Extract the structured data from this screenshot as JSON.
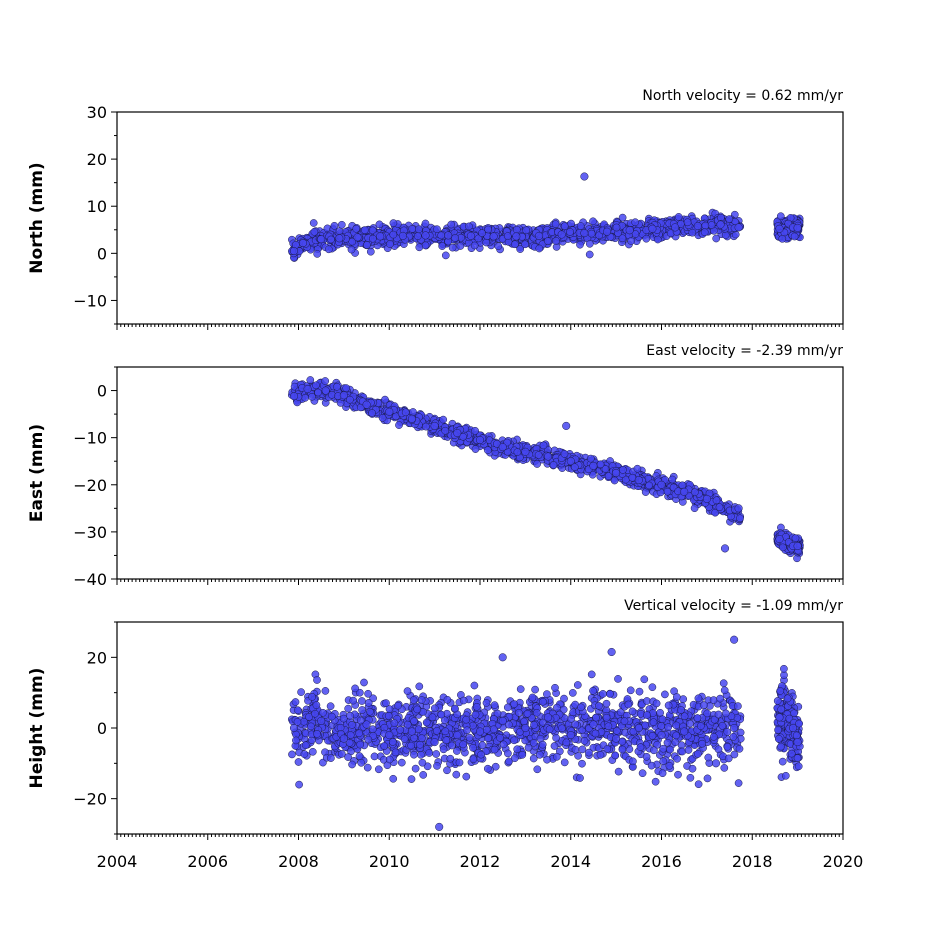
{
  "chart_data": [
    {
      "type": "scatter",
      "panel": "north",
      "ylabel": "North (mm)",
      "annotation": "North velocity = 0.62 mm/yr",
      "xlim": [
        2004,
        2020
      ],
      "ylim": [
        -15,
        30
      ],
      "yticks": [
        -10,
        0,
        10,
        20,
        30
      ],
      "ytick_labels": [
        "−10",
        "0",
        "10",
        "20",
        "30"
      ],
      "velocity_mm_per_yr": 0.62,
      "points": [
        [
          2007.9,
          0.5
        ],
        [
          2008.1,
          2.2
        ],
        [
          2008.5,
          3.0
        ],
        [
          2008.9,
          3.2
        ],
        [
          2009.3,
          3.4
        ],
        [
          2009.8,
          3.6
        ],
        [
          2010.3,
          3.7
        ],
        [
          2010.8,
          3.8
        ],
        [
          2011.3,
          3.8
        ],
        [
          2011.8,
          3.7
        ],
        [
          2012.3,
          3.6
        ],
        [
          2012.8,
          3.6
        ],
        [
          2013.3,
          3.7
        ],
        [
          2013.8,
          4.0
        ],
        [
          2014.3,
          16.3
        ],
        [
          2014.3,
          4.3
        ],
        [
          2014.8,
          4.6
        ],
        [
          2015.3,
          4.9
        ],
        [
          2015.8,
          5.2
        ],
        [
          2016.3,
          5.5
        ],
        [
          2016.8,
          5.8
        ],
        [
          2017.3,
          6.1
        ],
        [
          2017.7,
          5.5
        ],
        [
          2018.6,
          5.2
        ],
        [
          2018.9,
          5.5
        ],
        [
          2019.0,
          5.4
        ]
      ],
      "series_color": "#4646f0"
    },
    {
      "type": "scatter",
      "panel": "east",
      "ylabel": "East (mm)",
      "annotation": "East velocity = -2.39 mm/yr",
      "xlim": [
        2004,
        2020
      ],
      "ylim": [
        -40,
        5
      ],
      "yticks": [
        -40,
        -30,
        -20,
        -10,
        0
      ],
      "ytick_labels": [
        "−40",
        "−30",
        "−20",
        "−10",
        "0"
      ],
      "velocity_mm_per_yr": -2.39,
      "points": [
        [
          2007.9,
          -1.2
        ],
        [
          2008.2,
          0.3
        ],
        [
          2008.6,
          0.0
        ],
        [
          2009.0,
          -1.0
        ],
        [
          2009.5,
          -3.0
        ],
        [
          2010.0,
          -4.5
        ],
        [
          2010.5,
          -6.0
        ],
        [
          2011.0,
          -7.5
        ],
        [
          2011.5,
          -9.0
        ],
        [
          2012.0,
          -10.5
        ],
        [
          2012.5,
          -12.0
        ],
        [
          2013.0,
          -13.0
        ],
        [
          2013.5,
          -14.0
        ],
        [
          2013.9,
          -7.5
        ],
        [
          2014.0,
          -15.0
        ],
        [
          2014.5,
          -16.0
        ],
        [
          2015.0,
          -17.5
        ],
        [
          2015.5,
          -19.0
        ],
        [
          2016.0,
          -20.0
        ],
        [
          2016.5,
          -21.5
        ],
        [
          2017.0,
          -23.0
        ],
        [
          2017.4,
          -33.5
        ],
        [
          2017.7,
          -25.0
        ],
        [
          2018.6,
          -31.5
        ],
        [
          2018.9,
          -33.0
        ],
        [
          2019.0,
          -33.0
        ]
      ],
      "series_color": "#4646f0"
    },
    {
      "type": "scatter",
      "panel": "height",
      "ylabel": "Height (mm)",
      "annotation": "Vertical velocity = -1.09 mm/yr",
      "xlim": [
        2004,
        2020
      ],
      "ylim": [
        -30,
        30
      ],
      "yticks": [
        -20,
        0,
        20
      ],
      "ytick_labels": [
        "−20",
        "0",
        "20"
      ],
      "velocity_mm_per_yr": -1.09,
      "points": [
        [
          2007.9,
          0.0
        ],
        [
          2008.5,
          2.0
        ],
        [
          2009.0,
          -3.0
        ],
        [
          2009.5,
          1.0
        ],
        [
          2010.0,
          -2.0
        ],
        [
          2010.5,
          -1.0
        ],
        [
          2011.0,
          -4.0
        ],
        [
          2011.1,
          -28.0
        ],
        [
          2011.5,
          -2.0
        ],
        [
          2012.0,
          -1.0
        ],
        [
          2012.5,
          20.0
        ],
        [
          2012.5,
          2.0
        ],
        [
          2013.0,
          0.0
        ],
        [
          2013.5,
          3.0
        ],
        [
          2014.0,
          -2.0
        ],
        [
          2014.5,
          1.0
        ],
        [
          2014.9,
          21.5
        ],
        [
          2015.0,
          -3.0
        ],
        [
          2015.5,
          0.0
        ],
        [
          2016.0,
          -2.0
        ],
        [
          2016.5,
          -1.0
        ],
        [
          2017.2,
          -10.0
        ],
        [
          2017.6,
          25.0
        ],
        [
          2017.6,
          0.0
        ],
        [
          2018.6,
          3.0
        ],
        [
          2018.9,
          0.0
        ],
        [
          2019.0,
          -4.0
        ]
      ],
      "series_color": "#4646f0"
    }
  ],
  "x_axis": {
    "ticks": [
      2004,
      2006,
      2008,
      2010,
      2012,
      2014,
      2016,
      2018,
      2020
    ],
    "tick_labels": [
      "2004",
      "2006",
      "2008",
      "2010",
      "2012",
      "2014",
      "2016",
      "2018",
      "2020"
    ]
  },
  "data_segments": [
    [
      2007.85,
      2017.75
    ],
    [
      2018.55,
      2019.05
    ]
  ]
}
